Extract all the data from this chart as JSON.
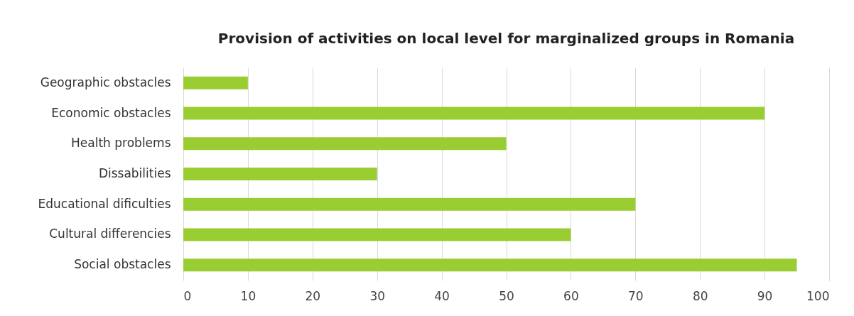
{
  "chart_data": {
    "type": "bar",
    "orientation": "horizontal",
    "title": "Provision of activities on local level for marginalized groups in Romania",
    "categories": [
      "Geographic obstacles",
      "Economic obstacles",
      "Health problems",
      "Dissabilities",
      "Educational dificulties",
      "Cultural differencies",
      "Social obstacles"
    ],
    "values": [
      10,
      90,
      50,
      30,
      70,
      60,
      95
    ],
    "color": "#9acd32",
    "xlim": [
      0,
      100
    ],
    "xticks": [
      0,
      10,
      20,
      30,
      40,
      50,
      60,
      70,
      80,
      90,
      100
    ],
    "grid": "x"
  }
}
